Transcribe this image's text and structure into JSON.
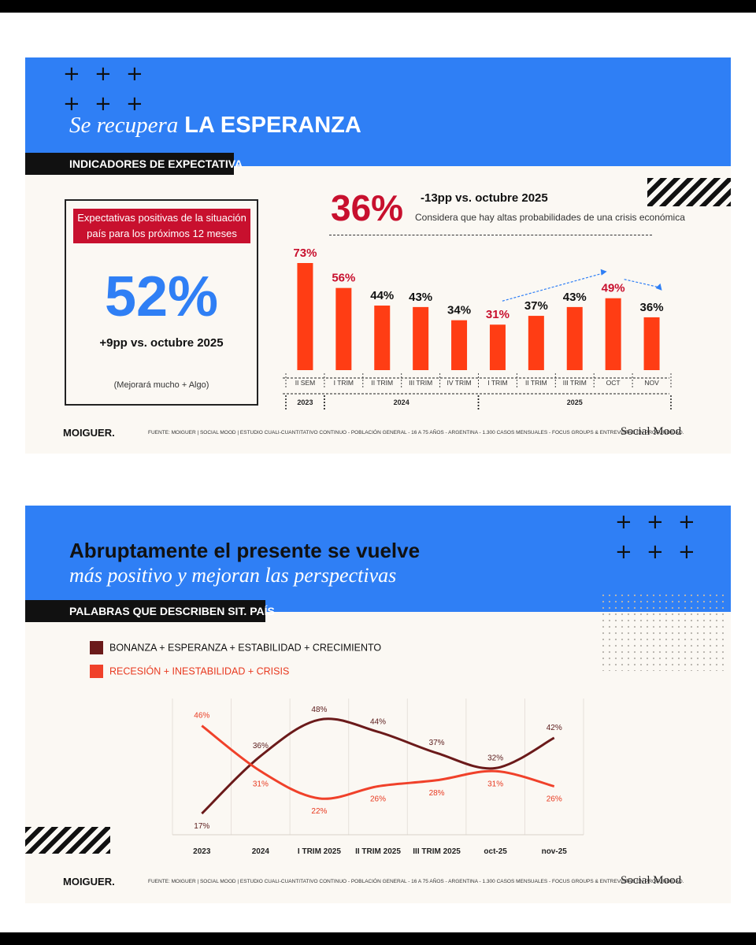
{
  "colors": {
    "blue": "#2f7ff5",
    "red": "#ff3d14",
    "dark_red": "#c8102e",
    "maroon": "#6b1a1a",
    "line_red": "#f0412a"
  },
  "card1": {
    "title_italic": "Se recupera",
    "title_bold": "LA ESPERANZA",
    "section": "INDICADORES DE EXPECTATIVA",
    "kpi_label_1": "Expectativas positivas de la situación",
    "kpi_label_2": "país para los próximos 12 meses",
    "kpi_value": "52%",
    "kpi_delta": "+9pp vs. octubre 2025",
    "kpi_note": "(Mejorará mucho + Algo)",
    "crisis_value": "36%",
    "crisis_delta": "-13pp vs. octubre 2025",
    "crisis_note": "Considera que hay altas probabilidades de una crisis económica",
    "footer_left": "MOIGUER.",
    "footer_middle": "FUENTE: MOIGUER | SOCIAL MOOD | ESTUDIO CUALI-CUANTITATIVO CONTINUO - POBLACIÓN GENERAL - 16 A 75 AÑOS - ARGENTINA - 1.300 CASOS MENSUALES - FOCUS GROUPS & ENTREVISTAS EN PROFUNDIDAD.",
    "footer_right": "Social Mood"
  },
  "card2": {
    "title_bold": "Abruptamente el presente se vuelve",
    "title_italic": "más positivo y mejoran las perspectivas",
    "section": "PALABRAS QUE DESCRIBEN SIT. PAÍS",
    "footer_left": "MOIGUER.",
    "footer_middle": "FUENTE: MOIGUER | SOCIAL MOOD | ESTUDIO CUALI-CUANTITATIVO CONTINUO - POBLACIÓN GENERAL - 16 A 75 AÑOS - ARGENTINA - 1.300 CASOS MENSUALES - FOCUS GROUPS & ENTREVISTAS EN PROFUNDIDAD.",
    "footer_right": "Social Mood"
  },
  "chart_data": [
    {
      "type": "bar",
      "categories": [
        "II SEM",
        "I TRIM",
        "II TRIM",
        "III TRIM",
        "IV TRIM",
        "I TRIM",
        "II TRIM",
        "III TRIM",
        "OCT",
        "NOV"
      ],
      "groups": [
        {
          "label": "2023",
          "from": 0,
          "to": 0
        },
        {
          "label": "2024",
          "from": 1,
          "to": 4
        },
        {
          "label": "2025",
          "from": 5,
          "to": 9
        }
      ],
      "values": [
        73,
        56,
        44,
        43,
        34,
        31,
        37,
        43,
        49,
        36
      ],
      "labels": [
        "73%",
        "56%",
        "44%",
        "43%",
        "34%",
        "31%",
        "37%",
        "43%",
        "49%",
        "36%"
      ],
      "highlight_labels": [
        0,
        1,
        5,
        8
      ],
      "ylim": [
        0,
        80
      ]
    },
    {
      "type": "line",
      "categories": [
        "2023",
        "2024",
        "I TRIM 2025",
        "II TRIM 2025",
        "III TRIM 2025",
        "oct-25",
        "nov-25"
      ],
      "series": [
        {
          "name": "BONANZA + ESPERANZA + ESTABILIDAD + CRECIMIENTO",
          "values": [
            17,
            36,
            48,
            44,
            37,
            32,
            42
          ],
          "labels": [
            "17%",
            "36%",
            "48%",
            "44%",
            "37%",
            "32%",
            "42%"
          ]
        },
        {
          "name": "RECESIÓN + INESTABILIDAD + CRISIS",
          "values": [
            46,
            31,
            22,
            26,
            28,
            31,
            26
          ],
          "labels": [
            "46%",
            "31%",
            "22%",
            "26%",
            "28%",
            "31%",
            "26%"
          ]
        }
      ],
      "ylim": [
        10,
        55
      ],
      "grid": "vertical"
    }
  ]
}
